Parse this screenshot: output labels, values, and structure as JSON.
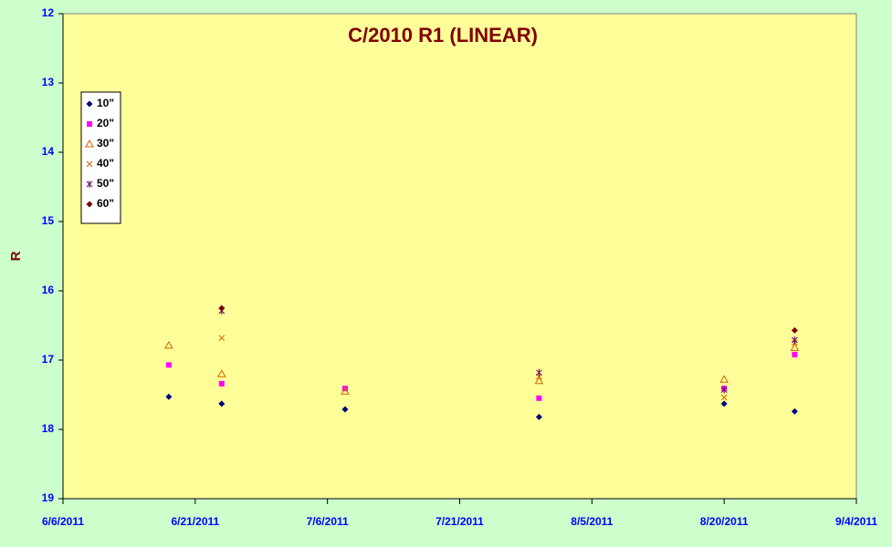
{
  "chart_data": {
    "type": "scatter",
    "title": "C/2010 R1 (LINEAR)",
    "y_label": "R",
    "x": [
      "6/18/2011",
      "6/24/2011",
      "7/8/2011",
      "7/30/2011",
      "8/20/2011",
      "8/28/2011"
    ],
    "xlim": [
      "6/6/2011",
      "9/4/2011"
    ],
    "xticks": [
      "6/6/2011",
      "6/21/2011",
      "7/6/2011",
      "7/21/2011",
      "8/5/2011",
      "8/20/2011",
      "9/4/2011"
    ],
    "ylim": [
      12,
      19
    ],
    "y_inverted": true,
    "yticks": [
      12,
      13,
      14,
      15,
      16,
      17,
      18,
      19
    ],
    "grid": false,
    "legend": "upper left",
    "series": [
      {
        "name": "10\"",
        "color": "#000080",
        "marker": "diamond",
        "values": [
          17.53,
          17.63,
          17.71,
          17.82,
          17.63,
          17.74
        ]
      },
      {
        "name": "20\"",
        "color": "#ff00ff",
        "marker": "square",
        "values": [
          17.07,
          17.34,
          17.41,
          17.55,
          17.41,
          16.92
        ]
      },
      {
        "name": "30\"",
        "color": "#cc6600",
        "marker": "triangle",
        "values": [
          16.79,
          17.2,
          17.45,
          17.3,
          17.28,
          16.82
        ]
      },
      {
        "name": "40\"",
        "color": "#cc6600",
        "marker": "x",
        "values": [
          null,
          16.68,
          null,
          17.24,
          17.54,
          16.75
        ]
      },
      {
        "name": "50\"",
        "color": "#660066",
        "marker": "star",
        "values": [
          null,
          16.29,
          null,
          17.18,
          17.43,
          16.71
        ]
      },
      {
        "name": "60\"",
        "color": "#800000",
        "marker": "diamond",
        "values": [
          null,
          16.25,
          null,
          null,
          null,
          16.57
        ]
      }
    ]
  }
}
